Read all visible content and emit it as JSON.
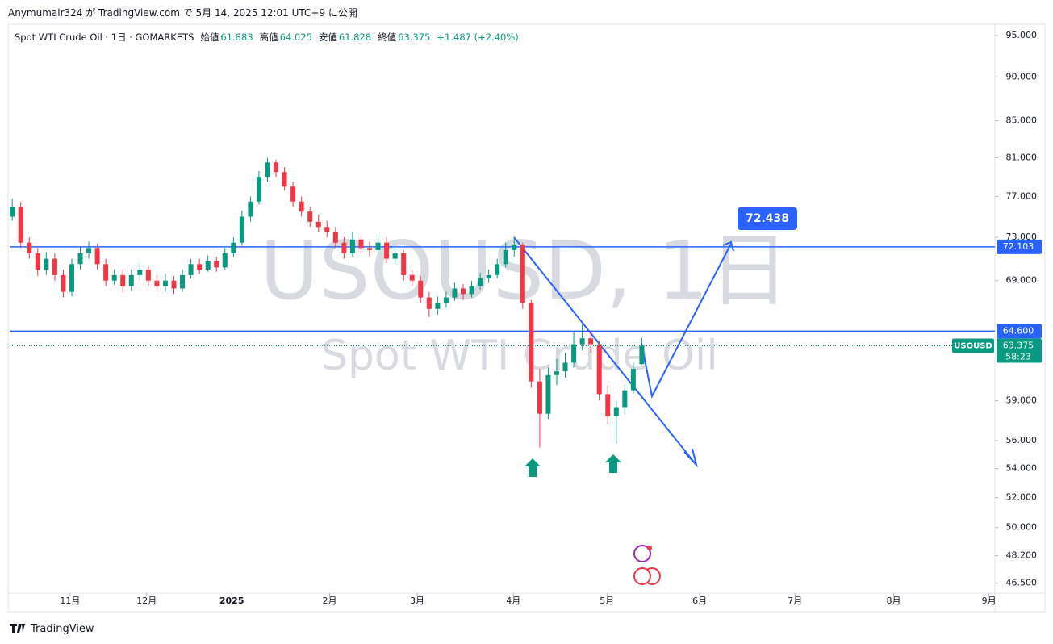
{
  "header": {
    "published": "Anymumair324 が TradingView.com で 5月 14, 2025 12:01 UTC+9 に公開"
  },
  "footer": {
    "brand": "TradingView"
  },
  "chart_data": {
    "type": "candlestick",
    "title": "Spot WTI Crude Oil · 1日 · GOMARKETS",
    "legend_labels": [
      "始値",
      "高値",
      "安値",
      "終値"
    ],
    "change": "+1.487 (+2.40%)",
    "watermark": [
      "USOUSD, 1日",
      "Spot WTI Crude Oil"
    ],
    "symbol": "USOUSD",
    "countdown": "58:23",
    "callout": "72.438",
    "up_color": "#089981",
    "down_color": "#f23645",
    "line_color": "#2962ff",
    "log_scale": true,
    "ylim": [
      45.9,
      96.2
    ],
    "yticks": [
      {
        "value": 95,
        "label": "95.000"
      },
      {
        "value": 90,
        "label": "90.000"
      },
      {
        "value": 85,
        "label": "85.000"
      },
      {
        "value": 81,
        "label": "81.000"
      },
      {
        "value": 77,
        "label": "77.000"
      },
      {
        "value": 73,
        "label": "73.000"
      },
      {
        "value": 69,
        "label": "69.000"
      },
      {
        "value": 59,
        "label": "59.000"
      },
      {
        "value": 56,
        "label": "56.000"
      },
      {
        "value": 54,
        "label": "54.000"
      },
      {
        "value": 52,
        "label": "52.000"
      },
      {
        "value": 50,
        "label": "50.000"
      },
      {
        "value": 48.2,
        "label": "48.200"
      },
      {
        "value": 46.5,
        "label": "46.500"
      }
    ],
    "xlim": [
      -0.3,
      115.5
    ],
    "xticks": [
      {
        "value": 6.8,
        "label": "11月"
      },
      {
        "value": 15.8,
        "label": "12月"
      },
      {
        "value": 25.8,
        "label": "2025"
      },
      {
        "value": 37.3,
        "label": "2月"
      },
      {
        "value": 47.6,
        "label": "3月"
      },
      {
        "value": 58.9,
        "label": "4月"
      },
      {
        "value": 69.9,
        "label": "5月"
      },
      {
        "value": 80.8,
        "label": "6月"
      },
      {
        "value": 92.0,
        "label": "7月"
      },
      {
        "value": 103.6,
        "label": "8月"
      },
      {
        "value": 114.8,
        "label": "9月"
      }
    ],
    "hlines": [
      72.103,
      {
        "value": 64.6,
        "label": "64.600"
      }
    ],
    "ohlc": [
      [
        75,
        76.8,
        74.6,
        76
      ],
      [
        76,
        76.5,
        72,
        72.5
      ],
      [
        72.5,
        73,
        71,
        71.5
      ],
      [
        71.5,
        72,
        69.4,
        70
      ],
      [
        70,
        71.6,
        69.5,
        71
      ],
      [
        71,
        71.5,
        69,
        69.5
      ],
      [
        69.5,
        70,
        67.5,
        68
      ],
      [
        68,
        71,
        67.6,
        70.5
      ],
      [
        70.5,
        72.1,
        70,
        71.5
      ],
      [
        71.5,
        72.6,
        71,
        72
      ],
      [
        72,
        72.4,
        70,
        70.5
      ],
      [
        70.5,
        71,
        68.5,
        69
      ],
      [
        69,
        70,
        68.6,
        69.5
      ],
      [
        69.5,
        70,
        68,
        68.5
      ],
      [
        68.5,
        70,
        68.1,
        69.5
      ],
      [
        69.5,
        70.6,
        69,
        70
      ],
      [
        70,
        70.4,
        68.5,
        69
      ],
      [
        69,
        69.5,
        68,
        68.5
      ],
      [
        68.5,
        69.6,
        68,
        69
      ],
      [
        69,
        69.4,
        67.8,
        68.3
      ],
      [
        68.3,
        70,
        68,
        69.5
      ],
      [
        69.5,
        71,
        69.2,
        70.5
      ],
      [
        70.5,
        71,
        69.6,
        70
      ],
      [
        70,
        71.3,
        69.8,
        70.8
      ],
      [
        70.8,
        71.2,
        69.8,
        70.2
      ],
      [
        70.2,
        72,
        70,
        71.5
      ],
      [
        71.5,
        73,
        71.2,
        72.5
      ],
      [
        72.5,
        75.6,
        72.2,
        75
      ],
      [
        75,
        77,
        74.5,
        76.5
      ],
      [
        76.5,
        79.6,
        76.2,
        79
      ],
      [
        79,
        81,
        78.5,
        80.5
      ],
      [
        80.5,
        80.8,
        79,
        79.5
      ],
      [
        79.5,
        80,
        77.6,
        78
      ],
      [
        78,
        78.5,
        76,
        76.5
      ],
      [
        76.5,
        77,
        75,
        75.5
      ],
      [
        75.5,
        76,
        74,
        74.5
      ],
      [
        74.5,
        75.2,
        73.5,
        74
      ],
      [
        74,
        74.6,
        73,
        73.5
      ],
      [
        73.5,
        74,
        72,
        72.5
      ],
      [
        72.5,
        73,
        71,
        71.5
      ],
      [
        71.5,
        73.5,
        71.2,
        72.8
      ],
      [
        72.8,
        73.2,
        71.5,
        72
      ],
      [
        72,
        72.6,
        71.2,
        71.8
      ],
      [
        71.8,
        73.3,
        71.5,
        72.5
      ],
      [
        72.5,
        73,
        70.6,
        71
      ],
      [
        71,
        72,
        70.5,
        71.5
      ],
      [
        71.5,
        71.8,
        69,
        69.5
      ],
      [
        69.5,
        70,
        68.5,
        69
      ],
      [
        69,
        69.4,
        67,
        67.5
      ],
      [
        67.5,
        68,
        65.8,
        66.5
      ],
      [
        66.5,
        67.6,
        66,
        67
      ],
      [
        67,
        68,
        66.6,
        67.5
      ],
      [
        67.5,
        68.8,
        67.2,
        68.3
      ],
      [
        68.3,
        68.7,
        67.3,
        67.8
      ],
      [
        67.8,
        69,
        67.5,
        68.5
      ],
      [
        68.5,
        69.7,
        68.2,
        69.2
      ],
      [
        69.2,
        70,
        68.8,
        69.5
      ],
      [
        69.5,
        71,
        69.2,
        70.5
      ],
      [
        70.5,
        72.5,
        70.2,
        71.8
      ],
      [
        71.8,
        73,
        71.2,
        72.3
      ],
      [
        72.3,
        72.5,
        66.5,
        67
      ],
      [
        67,
        67.3,
        60,
        60.5
      ],
      [
        60.5,
        61.5,
        55.5,
        58
      ],
      [
        58,
        61.6,
        57.6,
        61
      ],
      [
        61,
        62.3,
        60.2,
        61.3
      ],
      [
        61.3,
        62.8,
        60.8,
        62
      ],
      [
        62,
        64.5,
        61.6,
        63.5
      ],
      [
        63.5,
        65.2,
        63,
        64
      ],
      [
        64,
        64.6,
        62.8,
        63.5
      ],
      [
        63.5,
        63.8,
        59,
        59.5
      ],
      [
        59.5,
        60.2,
        57.2,
        57.8
      ],
      [
        57.8,
        59,
        55.8,
        58.5
      ],
      [
        58.5,
        60.3,
        58,
        59.8
      ],
      [
        59.8,
        62,
        59.5,
        61.5
      ],
      [
        61.883,
        64.025,
        61.828,
        63.375
      ]
    ]
  }
}
